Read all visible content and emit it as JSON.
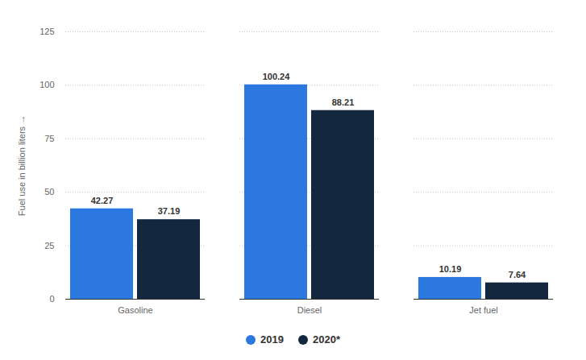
{
  "chart_data": {
    "type": "bar",
    "y_label": "Fuel use in billion liters",
    "categories": [
      "Gasoline",
      "Diesel",
      "Jet fuel"
    ],
    "series": [
      {
        "name": "2019",
        "color": "#2b78e0",
        "values": [
          42.27,
          100.24,
          10.19
        ]
      },
      {
        "name": "2020*",
        "color": "#13273f",
        "values": [
          37.19,
          88.21,
          7.64
        ]
      }
    ],
    "ylim": [
      0,
      125
    ],
    "yticks": [
      0,
      25,
      50,
      75,
      100,
      125
    ],
    "grid": true,
    "data_labels": true,
    "legend": "bottom"
  }
}
